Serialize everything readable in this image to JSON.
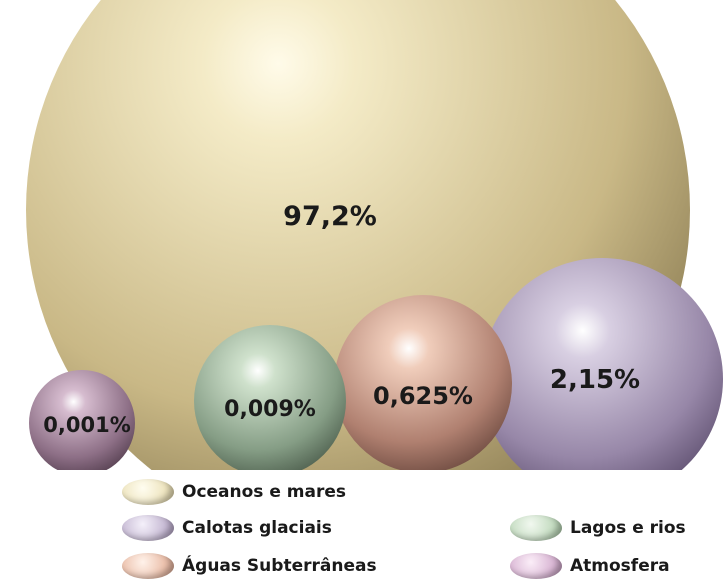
{
  "chart_data": {
    "type": "bubble",
    "series": [
      {
        "name": "Oceanos e mares",
        "value": 97.2,
        "label": "97,2%",
        "color": "#efe6c2"
      },
      {
        "name": "Calotas glaciais",
        "value": 2.15,
        "label": "2,15%",
        "color": "#c9bdd6"
      },
      {
        "name": "Águas Subterrâneas",
        "value": 0.625,
        "label": "0,625%",
        "color": "#ecc2ae"
      },
      {
        "name": "Lagos e rios",
        "value": 0.009,
        "label": "0,009%",
        "color": "#c6ddc3"
      },
      {
        "name": "Atmosfera",
        "value": 0.001,
        "label": "0,001%",
        "color": "#dbb9d6"
      }
    ],
    "legend": {
      "placement": "bottom",
      "entries": [
        "Oceanos e mares",
        "Calotas glaciais",
        "Águas Subterrâneas",
        "Lagos e rios",
        "Atmosfera"
      ]
    }
  }
}
